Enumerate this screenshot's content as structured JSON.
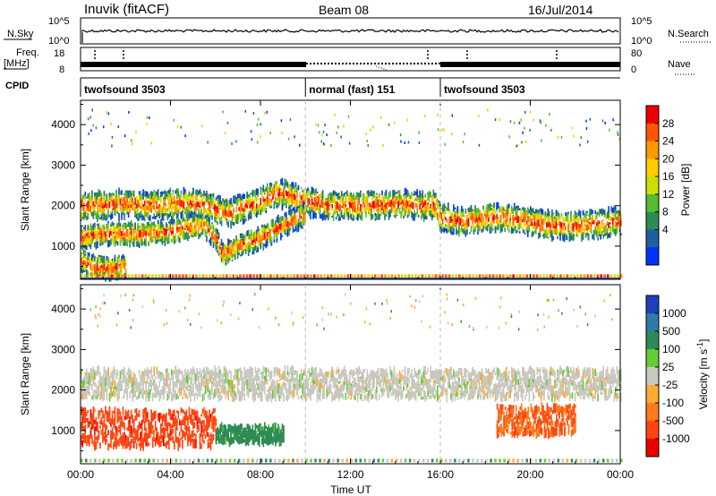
{
  "header": {
    "station": "Inuvik (fitACF)",
    "beam": "Beam 08",
    "date": "16/Jul/2014"
  },
  "top_panels": {
    "nsky_label": "N.Sky",
    "nsearch_label": "N.Search",
    "freq_label": "Freq.",
    "freq_unit": "[MHz]",
    "nave_label": "Nave",
    "cpid_label": "CPID",
    "nsky_ticks": [
      "10^5",
      "10^0"
    ],
    "nsearch_ticks": [
      "10^5",
      "10^0"
    ],
    "freq_ticks": [
      "18",
      "8"
    ],
    "nave_ticks": [
      "80",
      "0"
    ]
  },
  "cpid_segments": [
    {
      "label": "twofsound 3503",
      "start": 0,
      "end": 10
    },
    {
      "label": "normal (fast) 151",
      "start": 10,
      "end": 16
    },
    {
      "label": "twofsound 3503",
      "start": 16,
      "end": 24
    }
  ],
  "power_colorbar": {
    "title": "Power [dB]",
    "ticks": [
      "28",
      "24",
      "20",
      "16",
      "12",
      "8",
      "4"
    ],
    "colors": [
      "#ee0000",
      "#ff5500",
      "#ff9900",
      "#ffcc00",
      "#cce000",
      "#55bb33",
      "#2e8b57",
      "#1f5fa0",
      "#0033ff"
    ]
  },
  "velocity_colorbar": {
    "title": "Velocity [m s",
    "title_sup": "-1",
    "title_end": "]",
    "ticks": [
      "1000",
      "500",
      "100",
      "25",
      "-25",
      "-100",
      "-500",
      "-1000"
    ],
    "colors": [
      "#1d3fbf",
      "#2f7aa8",
      "#2e8b57",
      "#66cc33",
      "#c8c8c0",
      "#ffaa33",
      "#ff7a1a",
      "#ff4411",
      "#ee0000"
    ]
  },
  "chart_data": [
    {
      "type": "heatmap",
      "title": "Power",
      "ylabel": "Slant Range [km]",
      "xlabel": "",
      "x_ticks": [
        "00:00",
        "04:00",
        "08:00",
        "12:00",
        "16:00",
        "20:00",
        "00:00"
      ],
      "y_ticks": [
        1000,
        2000,
        3000,
        4000
      ],
      "xlim": [
        0,
        24
      ],
      "ylim": [
        180,
        4600
      ],
      "band_traces": [
        {
          "name": "",
          "x": [
            0,
            1,
            2,
            3,
            4,
            5,
            5.5,
            6,
            6.5,
            7,
            8,
            8.7,
            9.5,
            10,
            11,
            12,
            13,
            14,
            15,
            15.7,
            16,
            17,
            18,
            19,
            20,
            21,
            22,
            23,
            24
          ],
          "y": [
            2000,
            2000,
            2050,
            2000,
            2050,
            2050,
            2000,
            1900,
            1800,
            1900,
            2100,
            2300,
            2200,
            2100,
            2000,
            2000,
            2000,
            2050,
            2000,
            2000,
            1700,
            1600,
            1700,
            1700,
            1600,
            1500,
            1500,
            1550,
            1600
          ]
        },
        {
          "name": "",
          "x": [
            0,
            1,
            2,
            3,
            4,
            5,
            5.5,
            6,
            6.3,
            7,
            8,
            9,
            10
          ],
          "y": [
            1200,
            1300,
            1300,
            1300,
            1350,
            1500,
            1500,
            1200,
            800,
            1000,
            1200,
            1500,
            1800
          ]
        },
        {
          "name": "",
          "x": [
            0,
            0.5,
            1,
            1.5,
            2
          ],
          "y": [
            600,
            500,
            450,
            450,
            500
          ]
        }
      ]
    },
    {
      "type": "heatmap",
      "title": "Velocity",
      "ylabel": "Slant Range [km]",
      "xlabel": "Time UT",
      "x_ticks": [
        "00:00",
        "04:00",
        "08:00",
        "12:00",
        "16:00",
        "20:00",
        "00:00"
      ],
      "y_ticks": [
        1000,
        2000,
        3000,
        4000
      ],
      "xlim": [
        0,
        24
      ],
      "ylim": [
        180,
        4600
      ],
      "regions": [
        {
          "name": "",
          "t": [
            0,
            6
          ],
          "range": [
            600,
            1500
          ],
          "velocity": -500
        },
        {
          "name": "",
          "t": [
            6,
            9
          ],
          "range": [
            700,
            1100
          ],
          "velocity": 100
        },
        {
          "name": "",
          "t": [
            0,
            24
          ],
          "range": [
            1800,
            2500
          ],
          "velocity": 0
        },
        {
          "name": "",
          "t": [
            18.5,
            22
          ],
          "range": [
            900,
            1600
          ],
          "velocity": -300
        }
      ]
    }
  ]
}
